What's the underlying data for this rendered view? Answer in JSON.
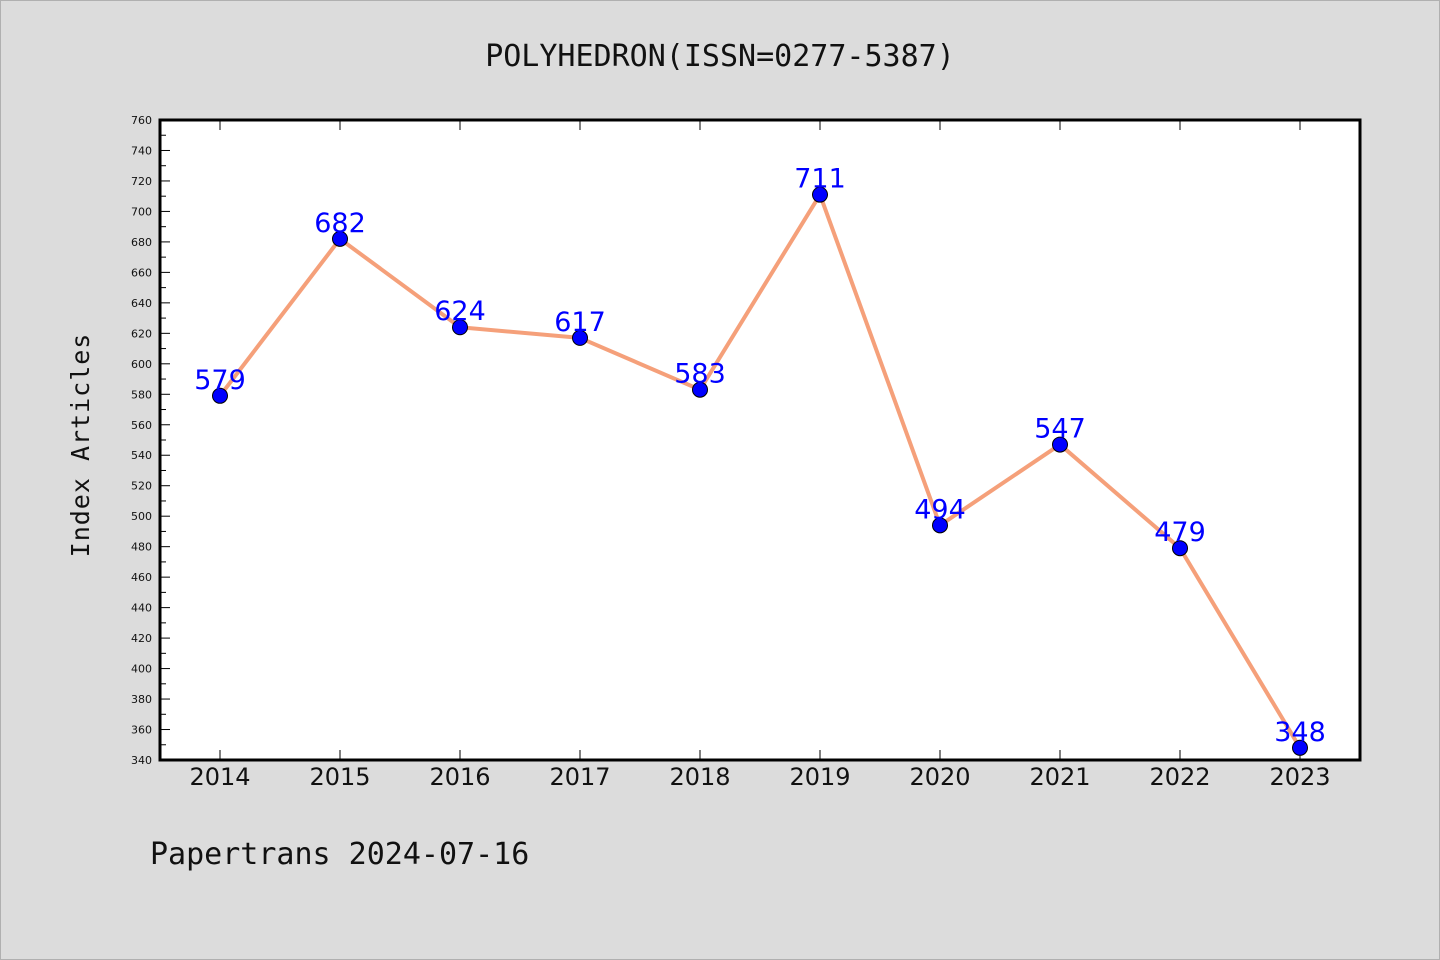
{
  "chart_data": {
    "type": "line",
    "title": "POLYHEDRON(ISSN=0277-5387)",
    "xlabel": "",
    "ylabel": "Index Articles",
    "footer": "Papertrans 2024-07-16",
    "categories": [
      "2014",
      "2015",
      "2016",
      "2017",
      "2018",
      "2019",
      "2020",
      "2021",
      "2022",
      "2023"
    ],
    "series": [
      {
        "values": [
          579,
          682,
          624,
          617,
          583,
          711,
          494,
          547,
          479,
          348
        ],
        "line_color": "#f5a07a",
        "marker_color": "#0000ff",
        "label_color": "#0000ff"
      }
    ],
    "ylim": [
      340,
      760
    ],
    "y_ticks": [
      340,
      360,
      380,
      400,
      420,
      440,
      460,
      480,
      500,
      520,
      540,
      560,
      580,
      600,
      620,
      640,
      660,
      680,
      700,
      720,
      740,
      760
    ],
    "y_minor_step": 10,
    "grid": false,
    "legend": "none",
    "background": "#dcdcdc",
    "plot_background": "#ffffff"
  }
}
